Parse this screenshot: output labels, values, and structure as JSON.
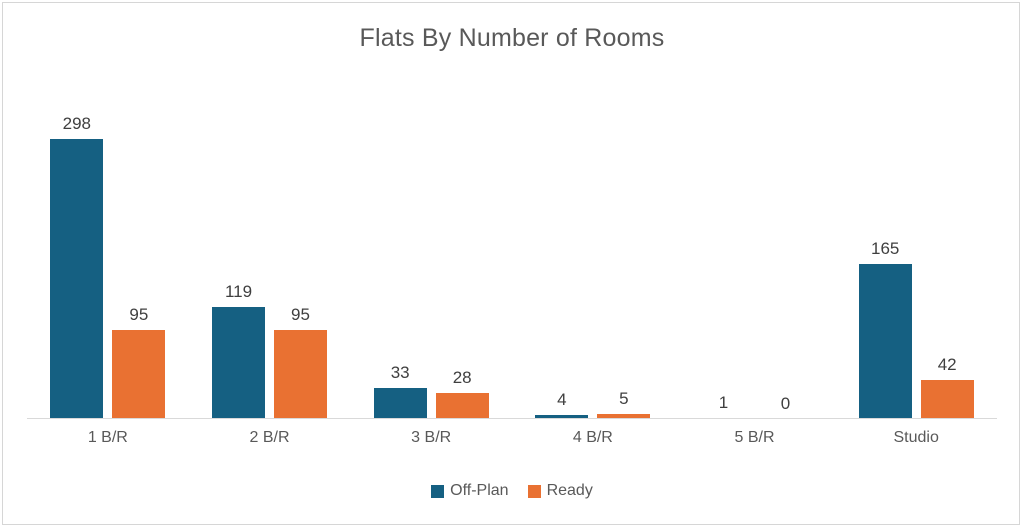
{
  "chart_data": {
    "type": "bar",
    "title": "Flats By Number of Rooms",
    "categories": [
      "1 B/R",
      "2 B/R",
      "3 B/R",
      "4 B/R",
      "5 B/R",
      "Studio"
    ],
    "series": [
      {
        "name": "Off-Plan",
        "color": "#156082",
        "values": [
          298,
          119,
          33,
          4,
          1,
          165
        ]
      },
      {
        "name": "Ready",
        "color": "#E97132",
        "values": [
          95,
          95,
          28,
          5,
          0,
          42
        ]
      }
    ],
    "xlabel": "",
    "ylabel": "",
    "ylim": [
      0,
      320
    ],
    "y_axis_visible": false,
    "grid": false,
    "data_labels": true,
    "legend_position": "bottom",
    "colors": {
      "title_text": "#595959",
      "data_label_text": "#3f3f3f",
      "axis_label_text": "#595959",
      "axis_line": "#d9d9d9",
      "chart_border": "#d6d6d6",
      "background": "#ffffff"
    }
  }
}
